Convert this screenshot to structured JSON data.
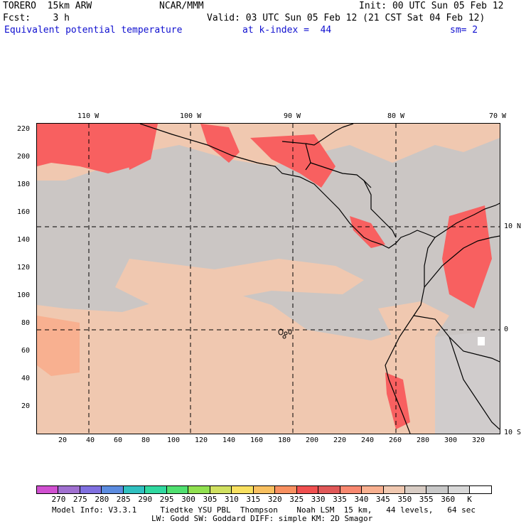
{
  "header": {
    "model": "TORERO  15km ARW",
    "org": "NCAR/MMM",
    "init": "Init: 00 UTC Sun 05 Feb 12",
    "fcst": "Fcst:    3 h",
    "valid": "Valid: 03 UTC Sun 05 Feb 12 (21 CST Sat 04 Feb 12)",
    "field": "Equivalent potential temperature",
    "level": "at k-index =  44",
    "smooth": "sm= 2"
  },
  "map": {
    "top_lon_labels": [
      "110 W",
      "100 W",
      "90 W",
      "80 W",
      "70 W"
    ],
    "right_lat_labels": [
      "10 N",
      "0",
      "10 S"
    ],
    "left_y_ticks": [
      "220",
      "200",
      "180",
      "160",
      "140",
      "120",
      "100",
      "80",
      "60",
      "40",
      "20"
    ],
    "bottom_x_ticks": [
      "20",
      "40",
      "60",
      "80",
      "100",
      "120",
      "140",
      "160",
      "180",
      "200",
      "220",
      "240",
      "260",
      "280",
      "300",
      "320"
    ]
  },
  "colorbar": {
    "colors": [
      "#d050d0",
      "#a070d0",
      "#8070e0",
      "#5c8ce0",
      "#30c0c0",
      "#30d8a0",
      "#50e070",
      "#90e050",
      "#d0e060",
      "#f8e060",
      "#f8c060",
      "#f89060",
      "#f05050",
      "#e05858",
      "#f88870",
      "#f8b090",
      "#f0c8b0",
      "#d8ccc4",
      "#c8c8c8",
      "#d8d8d8",
      "#ffffff"
    ],
    "labels": [
      "270",
      "275",
      "280",
      "285",
      "290",
      "295",
      "300",
      "305",
      "310",
      "315",
      "320",
      "325",
      "330",
      "335",
      "340",
      "345",
      "350",
      "355",
      "360",
      "K"
    ]
  },
  "footer": {
    "line1": "Model Info: V3.3.1     Tiedtke YSU PBL  Thompson    Noah LSM  15 km,   44 levels,   64 sec",
    "line2": "LW: Godd SW: Goddard DIFF: simple KM: 2D Smagor"
  }
}
